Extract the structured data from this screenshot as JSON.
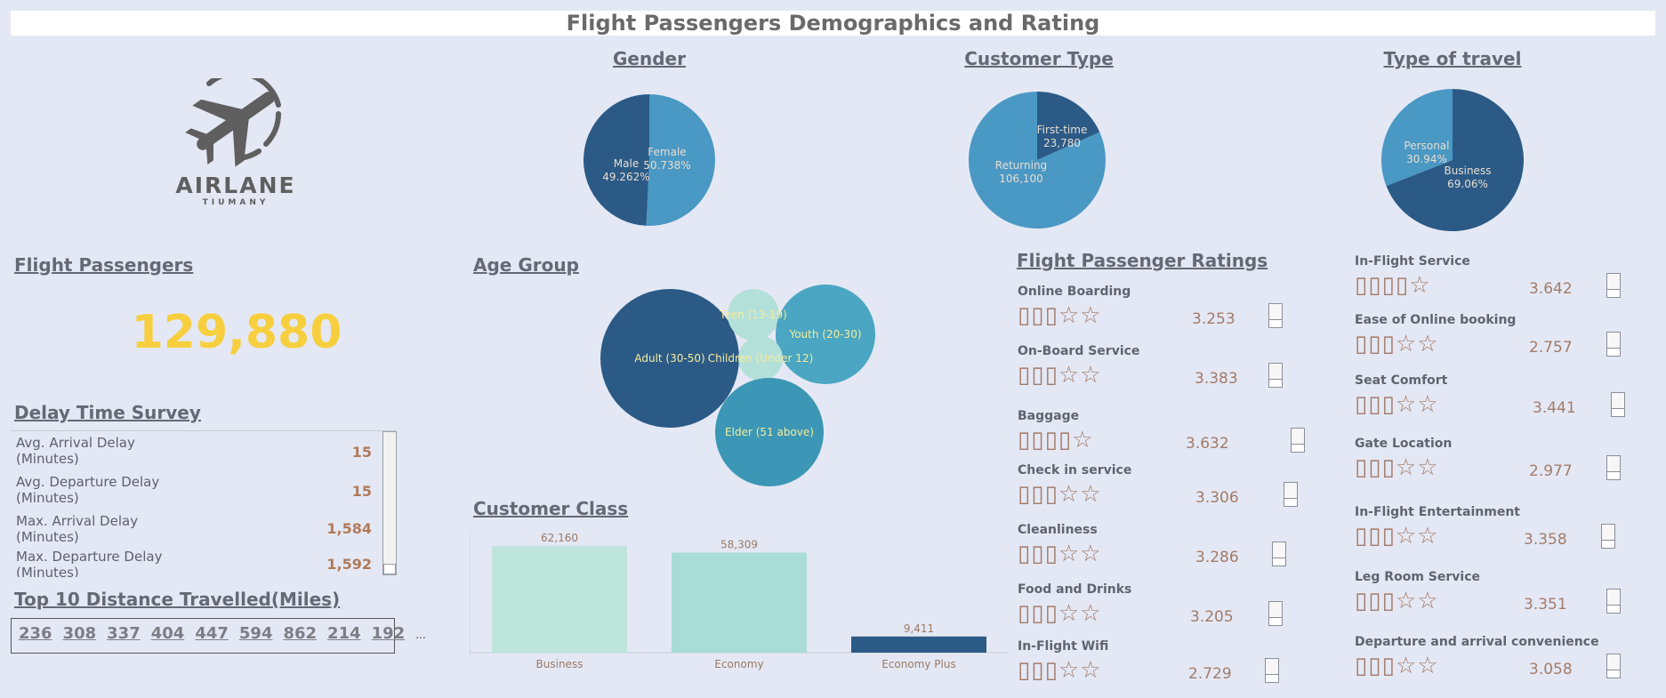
{
  "title": "Flight Passengers Demographics and Rating",
  "logo": {
    "name": "AIRLANE",
    "sub": "TIUMANY"
  },
  "gender": {
    "title": "Gender",
    "chart_data": {
      "type": "pie",
      "slices": [
        {
          "label": "Female",
          "value": 50.738,
          "display": "50.738%",
          "color": "#4a98c4"
        },
        {
          "label": "Male",
          "value": 49.262,
          "display": "49.262%",
          "color": "#2b5a86"
        }
      ]
    }
  },
  "customer_type": {
    "title": "Customer Type",
    "chart_data": {
      "type": "pie",
      "slices": [
        {
          "label": "First-time",
          "value": 23780,
          "display": "23,780",
          "color": "#2b5a86"
        },
        {
          "label": "Returning",
          "value": 106100,
          "display": "106,100",
          "color": "#4a98c4"
        }
      ]
    }
  },
  "type_of_travel": {
    "title": "Type of travel",
    "chart_data": {
      "type": "pie",
      "slices": [
        {
          "label": "Business",
          "value": 69.06,
          "display": "69.06%",
          "color": "#2b5a86"
        },
        {
          "label": "Personal",
          "value": 30.94,
          "display": "30.94%",
          "color": "#4a98c4"
        }
      ]
    }
  },
  "flight_passengers": {
    "title": "Flight Passengers",
    "value": "129,880"
  },
  "delay_survey": {
    "title": "Delay Time Survey",
    "rows": [
      {
        "label": "Avg. Arrival Delay (Minutes)",
        "value": "15"
      },
      {
        "label": "Avg. Departure Delay (Minutes)",
        "value": "15"
      },
      {
        "label": "Max. Arrival Delay (Minutes)",
        "value": "1,584"
      },
      {
        "label": "Max. Departure Delay (Minutes)",
        "value": "1,592"
      }
    ]
  },
  "top_distance": {
    "title": "Top 10 Distance Travelled(Miles)",
    "values": [
      "236",
      "308",
      "337",
      "404",
      "447",
      "594",
      "862",
      "214",
      "192"
    ],
    "more": "..."
  },
  "age_group": {
    "title": "Age Group",
    "chart_data": {
      "type": "bubble",
      "groups": [
        {
          "label": "Adult (30-50)",
          "color": "#2b5a86"
        },
        {
          "label": "Teen (13-19)",
          "color": "#b4e0da"
        },
        {
          "label": "Youth (20-30)",
          "color": "#4aa6c2"
        },
        {
          "label": "Children (Under 12)",
          "color": "#b4e0da"
        },
        {
          "label": "Elder (51 above)",
          "color": "#3b97b5"
        }
      ]
    }
  },
  "customer_class": {
    "title": "Customer Class",
    "chart_data": {
      "type": "bar",
      "categories": [
        "Business",
        "Economy",
        "Economy Plus"
      ],
      "values": [
        62160,
        58309,
        9411
      ],
      "labels": [
        "62,160",
        "58,309",
        "9,411"
      ],
      "colors": [
        "#bde5dc",
        "#a9dcd5",
        "#2b5a86"
      ],
      "ylim": [
        0,
        62160
      ]
    }
  },
  "ratings": {
    "title": "Flight Passenger Ratings",
    "left": [
      {
        "label": "Online Boarding",
        "stars": "▯▯▯☆☆",
        "value": "3.253"
      },
      {
        "label": "On-Board Service",
        "stars": "▯▯▯☆☆",
        "value": "3.383"
      },
      {
        "label": "Baggage",
        "stars": "▯▯▯▯☆",
        "value": "3.632"
      },
      {
        "label": "Check in service",
        "stars": "▯▯▯☆☆",
        "value": "3.306"
      },
      {
        "label": "Cleanliness",
        "stars": "▯▯▯☆☆",
        "value": "3.286"
      },
      {
        "label": "Food and Drinks",
        "stars": "▯▯▯☆☆",
        "value": "3.205"
      },
      {
        "label": "In-Flight Wifi",
        "stars": "▯▯▯☆☆",
        "value": "2.729"
      }
    ],
    "right": [
      {
        "label": "In-Flight Service",
        "stars": "▯▯▯▯☆",
        "value": "3.642"
      },
      {
        "label": "Ease of Online booking",
        "stars": "▯▯▯☆☆",
        "value": "2.757"
      },
      {
        "label": "Seat Comfort",
        "stars": "▯▯▯☆☆",
        "value": "3.441"
      },
      {
        "label": "Gate Location",
        "stars": "▯▯▯☆☆",
        "value": "2.977"
      },
      {
        "label": "In-Flight Entertainment",
        "stars": "▯▯▯☆☆",
        "value": "3.358"
      },
      {
        "label": "Leg Room Service",
        "stars": "▯▯▯☆☆",
        "value": "3.351"
      },
      {
        "label": "Departure and arrival convenience",
        "stars": "▯▯▯☆☆",
        "value": "3.058"
      }
    ]
  }
}
